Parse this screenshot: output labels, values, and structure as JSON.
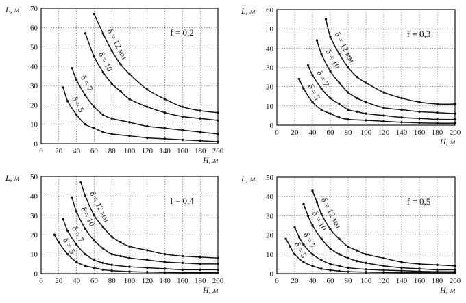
{
  "chart_data": [
    {
      "type": "line",
      "panel": "top-left",
      "f_label": "f = 0,2",
      "xlabel": "H, м",
      "ylabel": "L, м",
      "xlim": [
        0,
        200
      ],
      "ylim": [
        0,
        70
      ],
      "xticks": [
        "0",
        "20",
        "40",
        "60",
        "80",
        "100",
        "120",
        "140",
        "160",
        "180",
        "200"
      ],
      "yticks": [
        "0",
        "10",
        "20",
        "30",
        "40",
        "50",
        "60",
        "70"
      ],
      "series": [
        {
          "name": "δ = 12 мм",
          "x": [
            60,
            70,
            80,
            90,
            100,
            120,
            140,
            160,
            180,
            200
          ],
          "y": [
            67,
            57,
            48,
            41,
            36,
            28,
            23,
            19,
            17,
            16
          ]
        },
        {
          "name": "δ = 10",
          "x": [
            50,
            60,
            70,
            80,
            90,
            100,
            120,
            140,
            160,
            180,
            200
          ],
          "y": [
            57,
            45,
            37,
            31,
            27,
            23,
            19,
            16,
            14,
            13,
            12
          ]
        },
        {
          "name": "δ = 7",
          "x": [
            35,
            40,
            50,
            60,
            70,
            80,
            100,
            120,
            140,
            160,
            180,
            200
          ],
          "y": [
            39,
            33,
            25,
            19,
            15,
            13,
            11,
            9,
            8,
            7,
            6,
            5
          ]
        },
        {
          "name": "δ = 5",
          "x": [
            25,
            30,
            40,
            50,
            60,
            70,
            80,
            100,
            120,
            140,
            160,
            180,
            200
          ],
          "y": [
            29,
            22,
            15,
            10,
            8,
            6,
            5,
            4,
            3,
            2.5,
            2,
            1.5,
            1
          ]
        }
      ]
    },
    {
      "type": "line",
      "panel": "top-right",
      "f_label": "f = 0,3",
      "xlabel": "H, м",
      "ylabel": "L, м",
      "xlim": [
        0,
        200
      ],
      "ylim": [
        0,
        60
      ],
      "xticks": [
        "0",
        "20",
        "40",
        "60",
        "80",
        "100",
        "120",
        "140",
        "160",
        "180",
        "200"
      ],
      "yticks": [
        "0",
        "10",
        "20",
        "30",
        "40",
        "50",
        "60"
      ],
      "series": [
        {
          "name": "δ = 12 мм",
          "x": [
            55,
            60,
            70,
            80,
            90,
            100,
            120,
            140,
            160,
            180,
            200
          ],
          "y": [
            55,
            46,
            37,
            30,
            25,
            22,
            17,
            14,
            12,
            11,
            11
          ]
        },
        {
          "name": "δ = 10",
          "x": [
            45,
            50,
            60,
            70,
            80,
            90,
            100,
            120,
            140,
            160,
            180,
            200
          ],
          "y": [
            44,
            37,
            28,
            22,
            17,
            14,
            12,
            9,
            8,
            7,
            6.5,
            6
          ]
        },
        {
          "name": "δ = 7",
          "x": [
            35,
            40,
            50,
            60,
            70,
            80,
            90,
            100,
            120,
            140,
            160,
            180,
            200
          ],
          "y": [
            31,
            26,
            19,
            14,
            11,
            8,
            7,
            6,
            5,
            4,
            3.5,
            3,
            3
          ]
        },
        {
          "name": "δ = 5",
          "x": [
            25,
            30,
            40,
            50,
            60,
            70,
            80,
            100,
            120,
            140,
            160,
            180,
            200
          ],
          "y": [
            24,
            19,
            12,
            8,
            6,
            4,
            3,
            2.5,
            2,
            1.5,
            1.2,
            1,
            1
          ]
        }
      ]
    },
    {
      "type": "line",
      "panel": "bottom-left",
      "f_label": "f = 0,4",
      "xlabel": "H, м",
      "ylabel": "L, м",
      "xlim": [
        0,
        200
      ],
      "ylim": [
        0,
        50
      ],
      "xticks": [
        "0",
        "20",
        "40",
        "60",
        "80",
        "100",
        "120",
        "140",
        "160",
        "180",
        "200"
      ],
      "yticks": [
        "0",
        "10",
        "20",
        "30",
        "40",
        "50"
      ],
      "series": [
        {
          "name": "δ = 12 мм",
          "x": [
            45,
            50,
            60,
            70,
            80,
            90,
            100,
            120,
            140,
            160,
            180,
            200
          ],
          "y": [
            47,
            40,
            30,
            24,
            19,
            16,
            14,
            12,
            10,
            9,
            8.5,
            8
          ]
        },
        {
          "name": "δ = 10",
          "x": [
            35,
            40,
            50,
            60,
            70,
            80,
            90,
            100,
            120,
            140,
            160,
            180,
            200
          ],
          "y": [
            39,
            32,
            23,
            17,
            13,
            10,
            9,
            8,
            7,
            6,
            5.5,
            5,
            5
          ]
        },
        {
          "name": "δ = 7",
          "x": [
            25,
            30,
            40,
            50,
            60,
            70,
            80,
            100,
            120,
            140,
            160,
            180,
            200
          ],
          "y": [
            28,
            22,
            15,
            10,
            7,
            5.5,
            4.5,
            3.5,
            3,
            2.5,
            2,
            2,
            2
          ]
        },
        {
          "name": "δ = 5",
          "x": [
            15,
            20,
            30,
            40,
            50,
            60,
            70,
            80,
            100,
            120,
            140,
            160,
            180,
            200
          ],
          "y": [
            20,
            16,
            10,
            6,
            4,
            3,
            2,
            1.5,
            1,
            0.8,
            0.6,
            0.5,
            0.5,
            0.5
          ]
        }
      ]
    },
    {
      "type": "line",
      "panel": "bottom-right",
      "f_label": "f = 0,5",
      "xlabel": "H, м",
      "ylabel": "L, м",
      "xlim": [
        0,
        200
      ],
      "ylim": [
        0,
        50
      ],
      "xticks": [
        "0",
        "20",
        "40",
        "60",
        "80",
        "100",
        "120",
        "140",
        "160",
        "180",
        "200"
      ],
      "yticks": [
        "0",
        "10",
        "20",
        "30",
        "40",
        "50"
      ],
      "series": [
        {
          "name": "δ = 12 мм",
          "x": [
            40,
            45,
            50,
            60,
            70,
            80,
            90,
            100,
            120,
            140,
            160,
            180,
            200
          ],
          "y": [
            43,
            37,
            31,
            23,
            18,
            14,
            12,
            10,
            8,
            6,
            5,
            4.5,
            4
          ]
        },
        {
          "name": "δ = 10",
          "x": [
            30,
            35,
            40,
            50,
            60,
            70,
            80,
            90,
            100,
            120,
            140,
            160,
            180,
            200
          ],
          "y": [
            36,
            30,
            25,
            18,
            13,
            10,
            8,
            6.5,
            5.5,
            4,
            3,
            2.5,
            2,
            2
          ]
        },
        {
          "name": "δ = 7",
          "x": [
            20,
            25,
            30,
            40,
            50,
            60,
            70,
            80,
            100,
            120,
            140,
            160,
            180,
            200
          ],
          "y": [
            24,
            19,
            15,
            10,
            7,
            5,
            4,
            3,
            2.2,
            1.8,
            1.5,
            1.2,
            1,
            1
          ]
        },
        {
          "name": "δ = 5",
          "x": [
            10,
            15,
            20,
            30,
            40,
            50,
            60,
            70,
            80,
            100,
            120,
            140,
            160,
            180,
            200
          ],
          "y": [
            18,
            14,
            10,
            6,
            4,
            2.5,
            1.8,
            1.3,
            1,
            0.8,
            0.6,
            0.5,
            0.5,
            0.5,
            0.5
          ]
        }
      ]
    }
  ],
  "texts": {
    "ylabel_main": "L",
    "ylabel_unit": ", м",
    "xlabel_main": "H",
    "xlabel_unit": ", м"
  }
}
